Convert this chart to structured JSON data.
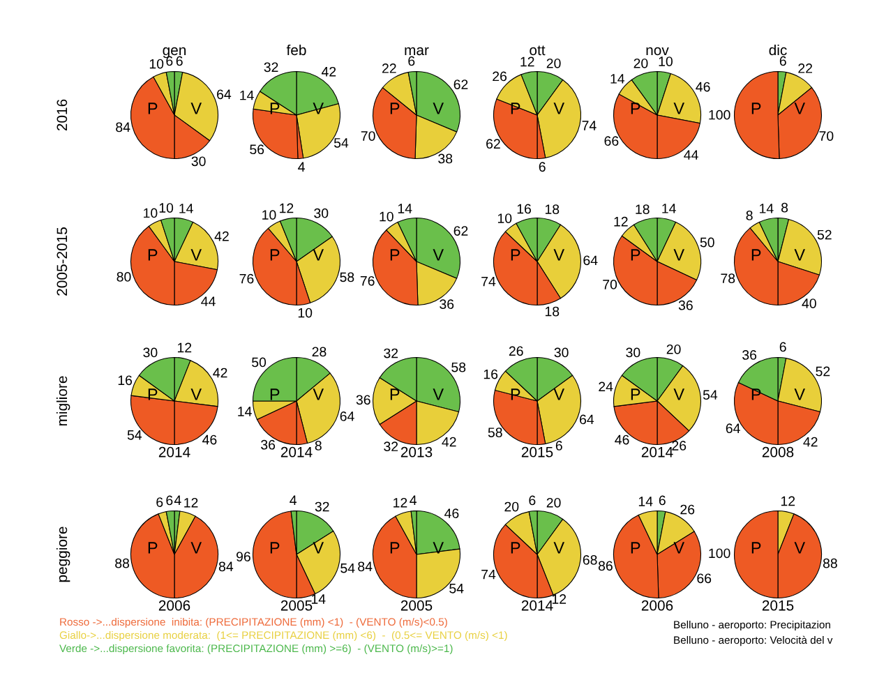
{
  "chart_data": [
    {
      "type": "pie",
      "title": "gen",
      "ylabel": "2016",
      "categories": [
        null,
        null,
        null,
        null,
        null,
        null
      ],
      "values": [
        6,
        64,
        30,
        84,
        10,
        6
      ],
      "colors": [
        "#6abf4b",
        "#e8cf3a",
        "#ee5a24",
        "#ee5a24",
        "#e8cf3a",
        "#6abf4b"
      ],
      "data_labels": true,
      "annotations": [
        "P",
        "V"
      ]
    },
    {
      "type": "pie",
      "title": "feb",
      "categories": [
        null,
        null,
        null,
        null,
        null,
        null
      ],
      "values": [
        42,
        54,
        4,
        56,
        14,
        32
      ],
      "colors": [
        "#6abf4b",
        "#e8cf3a",
        "#ee5a24",
        "#ee5a24",
        "#e8cf3a",
        "#6abf4b"
      ],
      "data_labels": true,
      "annotations": [
        "P",
        "V"
      ]
    },
    {
      "type": "pie",
      "title": "mar",
      "categories": [
        null,
        null,
        null,
        null,
        null
      ],
      "values": [
        62,
        38,
        70,
        22,
        6
      ],
      "colors": [
        "#6abf4b",
        "#e8cf3a",
        "#ee5a24",
        "#e8cf3a",
        "#6abf4b"
      ],
      "data_labels": true,
      "annotations": [
        "P",
        "V"
      ]
    },
    {
      "type": "pie",
      "title": "ott",
      "categories": [
        null,
        null,
        null,
        null,
        null,
        null
      ],
      "values": [
        20,
        74,
        6,
        62,
        26,
        12
      ],
      "colors": [
        "#6abf4b",
        "#e8cf3a",
        "#ee5a24",
        "#ee5a24",
        "#e8cf3a",
        "#6abf4b"
      ],
      "data_labels": true,
      "annotations": [
        "P",
        "V"
      ]
    },
    {
      "type": "pie",
      "title": "nov",
      "categories": [
        null,
        null,
        null,
        null,
        null,
        null
      ],
      "values": [
        10,
        46,
        44,
        66,
        14,
        20
      ],
      "colors": [
        "#6abf4b",
        "#e8cf3a",
        "#ee5a24",
        "#ee5a24",
        "#e8cf3a",
        "#6abf4b"
      ],
      "data_labels": true,
      "annotations": [
        "P",
        "V"
      ]
    },
    {
      "type": "pie",
      "title": "dic",
      "categories": [
        null,
        null,
        null,
        null
      ],
      "values": [
        6,
        22,
        70,
        100
      ],
      "colors": [
        "#6abf4b",
        "#e8cf3a",
        "#ee5a24",
        "#ee5a24"
      ],
      "data_labels": true,
      "annotations": [
        "P",
        "V"
      ]
    },
    {
      "type": "pie",
      "ylabel": "2005-2015",
      "categories": [
        null,
        null,
        null,
        null,
        null,
        null
      ],
      "values": [
        14,
        42,
        44,
        80,
        10,
        10
      ],
      "colors": [
        "#6abf4b",
        "#e8cf3a",
        "#ee5a24",
        "#ee5a24",
        "#e8cf3a",
        "#6abf4b"
      ],
      "data_labels": true,
      "annotations": [
        "P",
        "V"
      ]
    },
    {
      "type": "pie",
      "categories": [
        null,
        null,
        null,
        null,
        null,
        null
      ],
      "values": [
        30,
        58,
        10,
        76,
        10,
        12
      ],
      "colors": [
        "#6abf4b",
        "#e8cf3a",
        "#ee5a24",
        "#ee5a24",
        "#e8cf3a",
        "#6abf4b"
      ],
      "data_labels": true,
      "annotations": [
        "P",
        "V"
      ]
    },
    {
      "type": "pie",
      "categories": [
        null,
        null,
        null,
        null,
        null
      ],
      "values": [
        62,
        36,
        76,
        10,
        14
      ],
      "colors": [
        "#6abf4b",
        "#e8cf3a",
        "#ee5a24",
        "#e8cf3a",
        "#6abf4b"
      ],
      "data_labels": true,
      "annotations": [
        "P",
        "V"
      ]
    },
    {
      "type": "pie",
      "categories": [
        null,
        null,
        null,
        null,
        null,
        null
      ],
      "values": [
        18,
        64,
        18,
        74,
        10,
        16
      ],
      "colors": [
        "#6abf4b",
        "#e8cf3a",
        "#ee5a24",
        "#ee5a24",
        "#e8cf3a",
        "#6abf4b"
      ],
      "data_labels": true,
      "annotations": [
        "P",
        "V"
      ]
    },
    {
      "type": "pie",
      "categories": [
        null,
        null,
        null,
        null,
        null,
        null
      ],
      "values": [
        14,
        50,
        36,
        70,
        12,
        18
      ],
      "colors": [
        "#6abf4b",
        "#e8cf3a",
        "#ee5a24",
        "#ee5a24",
        "#e8cf3a",
        "#6abf4b"
      ],
      "data_labels": true,
      "annotations": [
        "P",
        "V"
      ]
    },
    {
      "type": "pie",
      "categories": [
        null,
        null,
        null,
        null,
        null,
        null
      ],
      "values": [
        8,
        52,
        40,
        78,
        8,
        14
      ],
      "colors": [
        "#6abf4b",
        "#e8cf3a",
        "#ee5a24",
        "#ee5a24",
        "#e8cf3a",
        "#6abf4b"
      ],
      "data_labels": true,
      "annotations": [
        "P",
        "V"
      ]
    },
    {
      "type": "pie",
      "ylabel": "migliore",
      "xlabel": "2014",
      "categories": [
        null,
        null,
        null,
        null,
        null,
        null
      ],
      "values": [
        12,
        42,
        46,
        54,
        16,
        30
      ],
      "colors": [
        "#6abf4b",
        "#e8cf3a",
        "#ee5a24",
        "#ee5a24",
        "#e8cf3a",
        "#6abf4b"
      ],
      "data_labels": true,
      "annotations": [
        "P",
        "V"
      ]
    },
    {
      "type": "pie",
      "xlabel": "2014",
      "categories": [
        null,
        null,
        null,
        null,
        null,
        null
      ],
      "values": [
        28,
        64,
        8,
        36,
        14,
        50
      ],
      "colors": [
        "#6abf4b",
        "#e8cf3a",
        "#ee5a24",
        "#ee5a24",
        "#e8cf3a",
        "#6abf4b"
      ],
      "data_labels": true,
      "annotations": [
        "P",
        "V"
      ]
    },
    {
      "type": "pie",
      "xlabel": "2013",
      "categories": [
        null,
        null,
        null,
        null,
        null
      ],
      "values": [
        58,
        42,
        32,
        36,
        32
      ],
      "colors": [
        "#6abf4b",
        "#e8cf3a",
        "#ee5a24",
        "#e8cf3a",
        "#6abf4b"
      ],
      "data_labels": true,
      "annotations": [
        "P",
        "V"
      ]
    },
    {
      "type": "pie",
      "xlabel": "2015",
      "categories": [
        null,
        null,
        null,
        null,
        null,
        null
      ],
      "values": [
        30,
        64,
        6,
        58,
        16,
        26
      ],
      "colors": [
        "#6abf4b",
        "#e8cf3a",
        "#ee5a24",
        "#ee5a24",
        "#e8cf3a",
        "#6abf4b"
      ],
      "data_labels": true,
      "annotations": [
        "P",
        "V"
      ]
    },
    {
      "type": "pie",
      "xlabel": "2014",
      "categories": [
        null,
        null,
        null,
        null,
        null,
        null
      ],
      "values": [
        20,
        54,
        26,
        46,
        24,
        30
      ],
      "colors": [
        "#6abf4b",
        "#e8cf3a",
        "#ee5a24",
        "#ee5a24",
        "#e8cf3a",
        "#6abf4b"
      ],
      "data_labels": true,
      "annotations": [
        "P",
        "V"
      ]
    },
    {
      "type": "pie",
      "xlabel": "2008",
      "categories": [
        null,
        null,
        null,
        null,
        null
      ],
      "values": [
        6,
        52,
        42,
        64,
        36
      ],
      "colors": [
        "#6abf4b",
        "#e8cf3a",
        "#ee5a24",
        "#ee5a24",
        "#6abf4b"
      ],
      "data_labels": true,
      "annotations": [
        "P",
        "V"
      ]
    },
    {
      "type": "pie",
      "ylabel": "peggiore",
      "xlabel": "2006",
      "categories": [
        null,
        null,
        null,
        null,
        null,
        null
      ],
      "values": [
        4,
        12,
        84,
        88,
        6,
        6
      ],
      "colors": [
        "#6abf4b",
        "#e8cf3a",
        "#ee5a24",
        "#ee5a24",
        "#e8cf3a",
        "#6abf4b"
      ],
      "data_labels": true,
      "annotations": [
        "P",
        "V"
      ]
    },
    {
      "type": "pie",
      "xlabel": "2005",
      "categories": [
        null,
        null,
        null,
        null,
        null
      ],
      "values": [
        32,
        54,
        14,
        96,
        4
      ],
      "colors": [
        "#6abf4b",
        "#e8cf3a",
        "#ee5a24",
        "#ee5a24",
        "#6abf4b"
      ],
      "data_labels": true,
      "annotations": [
        "P",
        "V"
      ]
    },
    {
      "type": "pie",
      "xlabel": "2005",
      "categories": [
        null,
        null,
        null,
        null,
        null
      ],
      "values": [
        46,
        54,
        84,
        12,
        4
      ],
      "colors": [
        "#6abf4b",
        "#e8cf3a",
        "#ee5a24",
        "#e8cf3a",
        "#6abf4b"
      ],
      "data_labels": true,
      "annotations": [
        "P",
        "V"
      ]
    },
    {
      "type": "pie",
      "xlabel": "2014",
      "categories": [
        null,
        null,
        null,
        null,
        null,
        null
      ],
      "values": [
        20,
        68,
        12,
        74,
        20,
        6
      ],
      "colors": [
        "#6abf4b",
        "#e8cf3a",
        "#ee5a24",
        "#ee5a24",
        "#e8cf3a",
        "#6abf4b"
      ],
      "data_labels": true,
      "annotations": [
        "P",
        "V"
      ]
    },
    {
      "type": "pie",
      "xlabel": "2006",
      "categories": [
        null,
        null,
        null,
        null,
        null
      ],
      "values": [
        6,
        26,
        66,
        86,
        14
      ],
      "colors": [
        "#6abf4b",
        "#e8cf3a",
        "#ee5a24",
        "#ee5a24",
        "#e8cf3a"
      ],
      "data_labels": true,
      "annotations": [
        "P",
        "V"
      ]
    },
    {
      "type": "pie",
      "xlabel": "2015",
      "categories": [
        null,
        null,
        null
      ],
      "values": [
        12,
        88,
        100
      ],
      "colors": [
        "#e8cf3a",
        "#ee5a24",
        "#ee5a24"
      ],
      "data_labels": true,
      "annotations": [
        "P",
        "V"
      ]
    },
    {
      "type": "other",
      "annotations": [
        "Rosso ->...dispersione  inibita: (PRECIPITAZIONE (mm) <1)  - (VENTO (m/s)<0.5)",
        "Giallo->...dispersione moderata:  (1<= PRECIPITAZIONE (mm) <6)  -  (0.5<= VENTO (m/s) <1)",
        "Verde ->...dispersione favorita: (PRECIPITAZIONE (mm) >=6)  - (VENTO (m/s)>=1)",
        "Belluno - aeroporto: Precipitazion",
        "Belluno - aeroporto: Velocità del v"
      ],
      "colors": [
        "#ee6a3a",
        "#e8d040",
        "#4cb84c",
        "#000000",
        "#000000"
      ]
    }
  ]
}
